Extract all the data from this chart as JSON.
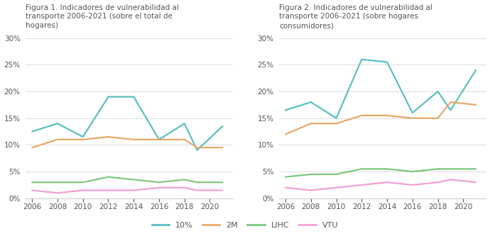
{
  "fig1": {
    "title": "Figura 1. Indicadores de vulnerabilidad al\ntransporte 2006-2021 (sobre el total de\nhogares)",
    "years": [
      2006,
      2008,
      2010,
      2012,
      2014,
      2016,
      2018,
      2019,
      2021
    ],
    "series": {
      "10%": [
        12.5,
        14.0,
        11.5,
        19.0,
        19.0,
        11.0,
        14.0,
        9.0,
        13.5
      ],
      "2M": [
        9.5,
        11.0,
        11.0,
        11.5,
        11.0,
        11.0,
        11.0,
        9.5,
        9.5
      ],
      "LIHC": [
        3.0,
        3.0,
        3.0,
        4.0,
        3.5,
        3.0,
        3.5,
        3.0,
        3.0
      ],
      "VTU": [
        1.5,
        1.0,
        1.5,
        1.5,
        1.5,
        2.0,
        2.0,
        1.5,
        1.5
      ]
    }
  },
  "fig2": {
    "title": "Figura 2. Indicadores de vulnerabilidad al\ntransporte 2006-2021 (sobre hogares\nconsumidores)",
    "years": [
      2006,
      2008,
      2010,
      2012,
      2014,
      2016,
      2018,
      2019,
      2021
    ],
    "series": {
      "10%": [
        16.5,
        18.0,
        15.0,
        26.0,
        25.5,
        16.0,
        20.0,
        16.5,
        24.0
      ],
      "2M": [
        12.0,
        14.0,
        14.0,
        15.5,
        15.5,
        15.0,
        15.0,
        18.0,
        17.5
      ],
      "LIHC": [
        4.0,
        4.5,
        4.5,
        5.5,
        5.5,
        5.0,
        5.5,
        5.5,
        5.5
      ],
      "VTU": [
        2.0,
        1.5,
        2.0,
        2.5,
        3.0,
        2.5,
        3.0,
        3.5,
        3.0
      ]
    }
  },
  "colors": {
    "10%": "#5BBFBF",
    "2M": "#E8A96A",
    "LIHC": "#7DC87D",
    "VTU": "#F0A0D8"
  },
  "xticks": [
    2006,
    2008,
    2010,
    2012,
    2014,
    2016,
    2018,
    2020
  ],
  "yticks": [
    0,
    5,
    10,
    15,
    20,
    25,
    30
  ],
  "xlim": [
    2005.5,
    2021.8
  ],
  "ylim": [
    0,
    31
  ],
  "background_color": "#ffffff",
  "grid_color": "#d8d8d8",
  "spine_color": "#cccccc",
  "text_color": "#555555",
  "title_fontsize": 7.5,
  "tick_fontsize": 7.5,
  "legend_fontsize": 8,
  "line_width": 1.6
}
